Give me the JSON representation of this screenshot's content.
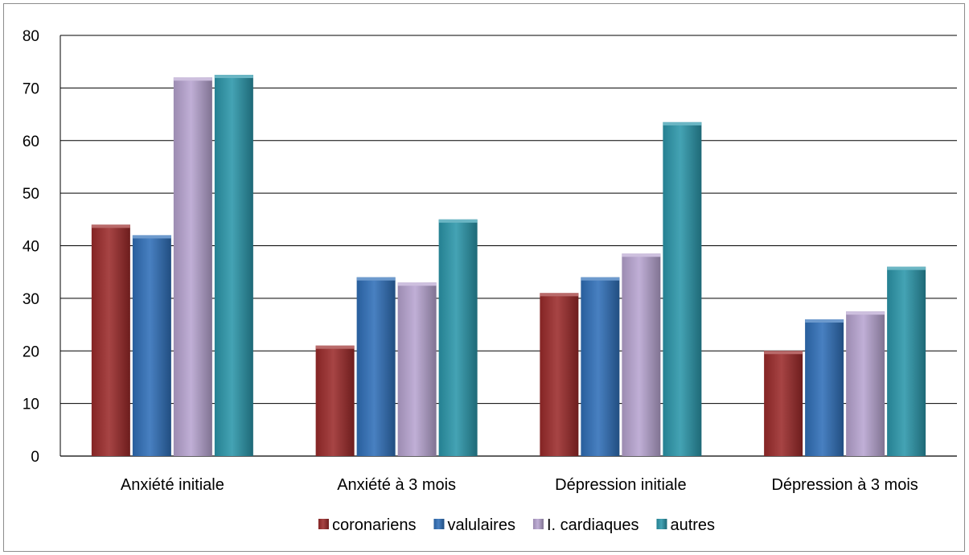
{
  "chart_data": {
    "type": "bar",
    "categories": [
      "Anxiété initiale",
      "Anxiété à 3 mois",
      "Dépression initiale",
      "Dépression à 3 mois"
    ],
    "series": [
      {
        "name": "coronariens",
        "values": [
          44,
          21,
          31,
          20
        ],
        "color": "#9b2a2a"
      },
      {
        "name": "valulaires",
        "values": [
          42,
          34,
          34,
          26
        ],
        "color": "#2f6fb8"
      },
      {
        "name": "I. cardiaques",
        "values": [
          72,
          33,
          38.5,
          27.5
        ],
        "color": "#b7a4d0"
      },
      {
        "name": "autres",
        "values": [
          72.5,
          45,
          63.5,
          36
        ],
        "color": "#2b96aa"
      }
    ],
    "ylim": [
      0,
      80
    ],
    "yticks": [
      "0",
      "10",
      "20",
      "30",
      "40",
      "50",
      "60",
      "70",
      "80"
    ],
    "grid": true,
    "legend_position": "bottom"
  }
}
